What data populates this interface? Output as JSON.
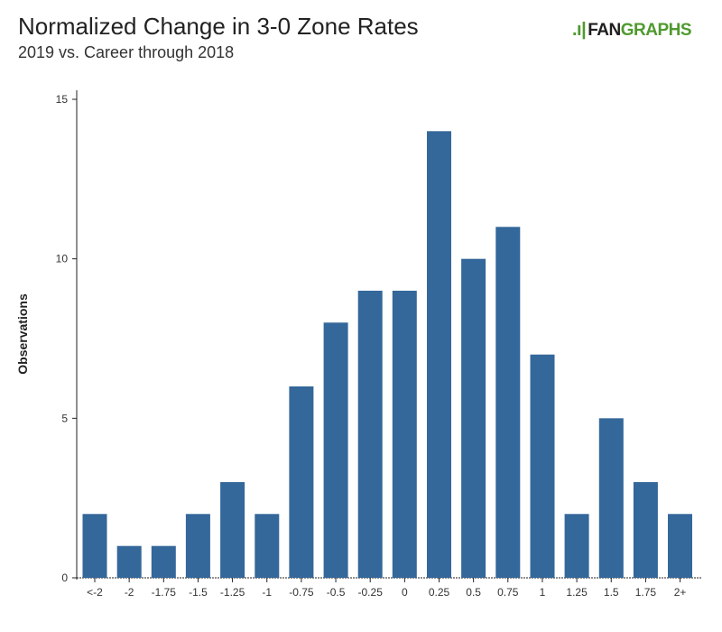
{
  "header": {
    "title": "Normalized Change in 3-0 Zone Rates",
    "subtitle": "2019 vs. Career through 2018"
  },
  "logo": {
    "mark": ".ı|",
    "part1": "FAN",
    "part2": "GRAPHS",
    "colors": {
      "dark": "#1e1e1e",
      "green": "#4f9a2e"
    }
  },
  "chart_data": {
    "type": "bar",
    "title": "Normalized Change in 3-0 Zone Rates",
    "subtitle": "2019 vs. Career through 2018",
    "xlabel": "",
    "ylabel": "Observations",
    "categories": [
      "<-2",
      "-2",
      "-1.75",
      "-1.5",
      "-1.25",
      "-1",
      "-0.75",
      "-0.5",
      "-0.25",
      "0",
      "0.25",
      "0.5",
      "0.75",
      "1",
      "1.25",
      "1.5",
      "1.75",
      "2+"
    ],
    "values": [
      2,
      1,
      1,
      2,
      3,
      2,
      6,
      8,
      9,
      9,
      14,
      10,
      11,
      7,
      2,
      5,
      3,
      2
    ],
    "ylim": [
      0,
      15
    ],
    "yticks": [
      0,
      5,
      10,
      15
    ],
    "grid": false,
    "bar_color": "#34679a"
  }
}
